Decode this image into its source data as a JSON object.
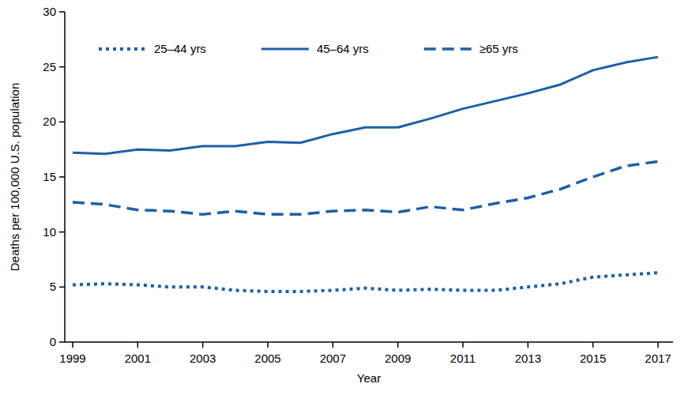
{
  "chart_data": {
    "type": "line",
    "x_label": "Year",
    "y_label": "Deaths per 100,000 U.S. population",
    "x": [
      1999,
      2000,
      2001,
      2002,
      2003,
      2004,
      2005,
      2006,
      2007,
      2008,
      2009,
      2010,
      2011,
      2012,
      2013,
      2014,
      2015,
      2016,
      2017
    ],
    "series": [
      {
        "name": "25–44 yrs",
        "color": "#1f5fa6",
        "line_style": "dotted",
        "values": [
          5.2,
          5.3,
          5.2,
          5.0,
          5.0,
          4.7,
          4.6,
          4.6,
          4.7,
          4.9,
          4.7,
          4.8,
          4.7,
          4.7,
          5.0,
          5.3,
          5.9,
          6.1,
          6.3
        ]
      },
      {
        "name": "45–64 yrs",
        "color": "#1f5fa6",
        "line_style": "solid",
        "values": [
          17.2,
          17.1,
          17.5,
          17.4,
          17.8,
          17.8,
          18.2,
          18.1,
          18.9,
          19.5,
          19.5,
          20.3,
          21.2,
          21.9,
          22.6,
          23.4,
          24.7,
          25.4,
          25.9
        ]
      },
      {
        "name": "≥65 yrs",
        "color": "#1f5fa6",
        "line_style": "dashed",
        "values": [
          12.7,
          12.5,
          12.0,
          11.9,
          11.6,
          11.9,
          11.6,
          11.6,
          11.9,
          12.0,
          11.8,
          12.3,
          12.0,
          12.6,
          13.1,
          13.9,
          15.0,
          16.0,
          16.4
        ]
      }
    ],
    "xlim": [
      1999,
      2017
    ],
    "xticks": [
      1999,
      2001,
      2003,
      2005,
      2007,
      2009,
      2011,
      2013,
      2015,
      2017
    ],
    "ylim": [
      0,
      30
    ],
    "yticks": [
      0,
      5,
      10,
      15,
      20,
      25,
      30
    ],
    "grid": false,
    "legend": "top-left"
  }
}
